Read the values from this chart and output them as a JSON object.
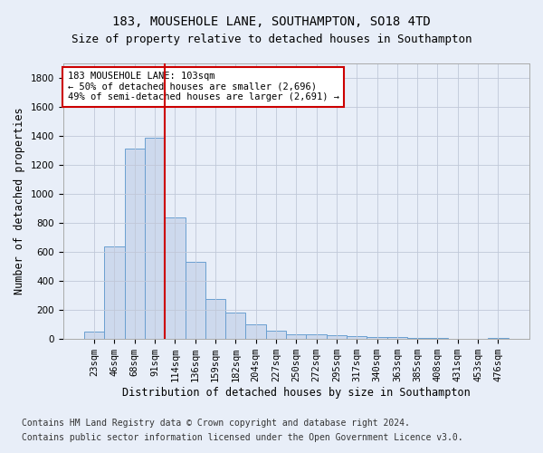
{
  "title_line1": "183, MOUSEHOLE LANE, SOUTHAMPTON, SO18 4TD",
  "title_line2": "Size of property relative to detached houses in Southampton",
  "xlabel": "Distribution of detached houses by size in Southampton",
  "ylabel": "Number of detached properties",
  "bar_color": "#cdd9ed",
  "bar_edge_color": "#6a9fd0",
  "grid_color": "#c0c8d8",
  "annotation_box_color": "#cc0000",
  "annotation_text": "183 MOUSEHOLE LANE: 103sqm\n← 50% of detached houses are smaller (2,696)\n49% of semi-detached houses are larger (2,691) →",
  "vline_color": "#cc0000",
  "categories": [
    "23sqm",
    "46sqm",
    "68sqm",
    "91sqm",
    "114sqm",
    "136sqm",
    "159sqm",
    "182sqm",
    "204sqm",
    "227sqm",
    "250sqm",
    "272sqm",
    "295sqm",
    "317sqm",
    "340sqm",
    "363sqm",
    "385sqm",
    "408sqm",
    "431sqm",
    "453sqm",
    "476sqm"
  ],
  "values": [
    50,
    640,
    1310,
    1390,
    840,
    530,
    275,
    180,
    100,
    60,
    35,
    30,
    25,
    20,
    17,
    15,
    8,
    5,
    4,
    3,
    5
  ],
  "ylim": [
    0,
    1900
  ],
  "yticks": [
    0,
    200,
    400,
    600,
    800,
    1000,
    1200,
    1400,
    1600,
    1800
  ],
  "footer_line1": "Contains HM Land Registry data © Crown copyright and database right 2024.",
  "footer_line2": "Contains public sector information licensed under the Open Government Licence v3.0.",
  "background_color": "#e8eef8",
  "plot_bg_color": "#e8eef8",
  "title1_fontsize": 10,
  "title2_fontsize": 9,
  "xlabel_fontsize": 8.5,
  "ylabel_fontsize": 8.5,
  "tick_fontsize": 7.5,
  "annotation_fontsize": 7.5,
  "footer_fontsize": 7
}
